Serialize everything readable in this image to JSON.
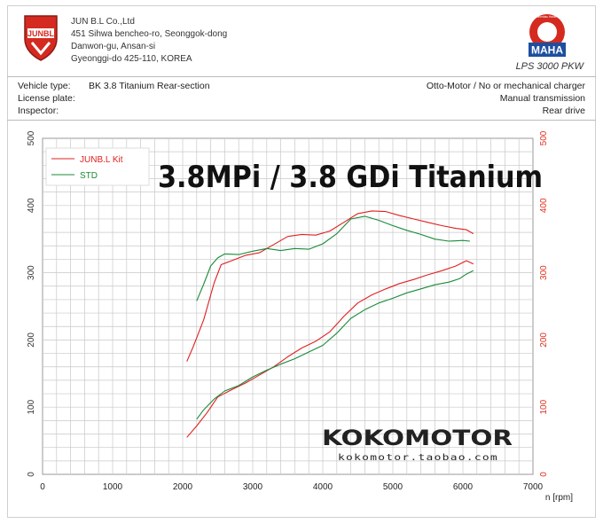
{
  "header": {
    "company_lines": [
      "JUN B.L Co.,Ltd",
      "451 Sihwa bencheo-ro, Seonggok-dong",
      "Danwon-gu, Ansan-si",
      "Gyeonggi-do 425-110, KOREA"
    ],
    "logo_text": "JUNBL",
    "maha_text": "MAHA",
    "maha_ring_text": "Maschinenbau Haldenwang",
    "lps_text": "LPS 3000 PKW"
  },
  "info": {
    "vehicle_label": "Vehicle type:",
    "vehicle_value": "BK 3.8 Titanium Rear-section",
    "license_label": "License plate:",
    "inspector_label": "Inspector:",
    "engine": "Otto-Motor / No or mechanical charger",
    "transmission": "Manual transmission",
    "drive": "Rear drive"
  },
  "overlay_title": "3.8MPi / 3.8 GDi Titanium",
  "watermark": {
    "brand": "KOKOMOTOR",
    "url": "kokomotor.taobao.com"
  },
  "colors": {
    "junbl": "#e02020",
    "std": "#1a8a3a",
    "grid": "#c8c8c8",
    "right_axis": "#e0301e"
  },
  "chart_data": {
    "type": "line",
    "xlabel": "n [rpm]",
    "xlim": [
      0,
      7000
    ],
    "ylim": [
      0,
      500
    ],
    "x_ticks": [
      0,
      1000,
      2000,
      3000,
      4000,
      5000,
      6000,
      7000
    ],
    "y_ticks": [
      0,
      100,
      200,
      300,
      400,
      500
    ],
    "grid": true,
    "legend_position": "top-left",
    "series": [
      {
        "name": "JUNB.L Kit",
        "color": "#e02020",
        "curves": [
          {
            "points": [
              [
                2060,
                168
              ],
              [
                2150,
                190
              ],
              [
                2300,
                230
              ],
              [
                2450,
                285
              ],
              [
                2550,
                312
              ],
              [
                2700,
                318
              ],
              [
                2900,
                326
              ],
              [
                3100,
                330
              ],
              [
                3300,
                342
              ],
              [
                3500,
                354
              ],
              [
                3700,
                357
              ],
              [
                3900,
                356
              ],
              [
                4100,
                362
              ],
              [
                4300,
                375
              ],
              [
                4500,
                388
              ],
              [
                4700,
                392
              ],
              [
                4900,
                391
              ],
              [
                5100,
                385
              ],
              [
                5300,
                380
              ],
              [
                5500,
                375
              ],
              [
                5700,
                370
              ],
              [
                5900,
                366
              ],
              [
                6050,
                364
              ],
              [
                6150,
                358
              ]
            ]
          },
          {
            "points": [
              [
                2060,
                55
              ],
              [
                2200,
                72
              ],
              [
                2350,
                92
              ],
              [
                2500,
                115
              ],
              [
                2700,
                126
              ],
              [
                2900,
                136
              ],
              [
                3100,
                148
              ],
              [
                3300,
                160
              ],
              [
                3500,
                175
              ],
              [
                3700,
                188
              ],
              [
                3900,
                198
              ],
              [
                4100,
                212
              ],
              [
                4300,
                235
              ],
              [
                4500,
                255
              ],
              [
                4700,
                267
              ],
              [
                4900,
                276
              ],
              [
                5100,
                284
              ],
              [
                5300,
                290
              ],
              [
                5500,
                297
              ],
              [
                5700,
                303
              ],
              [
                5900,
                310
              ],
              [
                6050,
                318
              ],
              [
                6150,
                313
              ]
            ]
          }
        ]
      },
      {
        "name": "STD",
        "color": "#1a8a3a",
        "curves": [
          {
            "points": [
              [
                2200,
                258
              ],
              [
                2300,
                283
              ],
              [
                2400,
                310
              ],
              [
                2500,
                322
              ],
              [
                2600,
                328
              ],
              [
                2800,
                327
              ],
              [
                3000,
                332
              ],
              [
                3200,
                336
              ],
              [
                3400,
                333
              ],
              [
                3600,
                336
              ],
              [
                3800,
                335
              ],
              [
                4000,
                343
              ],
              [
                4200,
                358
              ],
              [
                4400,
                380
              ],
              [
                4600,
                384
              ],
              [
                4800,
                378
              ],
              [
                5000,
                370
              ],
              [
                5200,
                363
              ],
              [
                5400,
                357
              ],
              [
                5600,
                350
              ],
              [
                5800,
                347
              ],
              [
                6000,
                348
              ],
              [
                6100,
                347
              ]
            ]
          },
          {
            "points": [
              [
                2200,
                82
              ],
              [
                2300,
                96
              ],
              [
                2450,
                112
              ],
              [
                2600,
                124
              ],
              [
                2800,
                132
              ],
              [
                3000,
                145
              ],
              [
                3200,
                155
              ],
              [
                3400,
                164
              ],
              [
                3600,
                172
              ],
              [
                3800,
                182
              ],
              [
                4000,
                192
              ],
              [
                4200,
                210
              ],
              [
                4400,
                232
              ],
              [
                4600,
                245
              ],
              [
                4800,
                255
              ],
              [
                5000,
                262
              ],
              [
                5200,
                270
              ],
              [
                5400,
                276
              ],
              [
                5600,
                282
              ],
              [
                5800,
                286
              ],
              [
                5950,
                291
              ],
              [
                6050,
                298
              ],
              [
                6150,
                303
              ]
            ]
          }
        ]
      }
    ]
  }
}
